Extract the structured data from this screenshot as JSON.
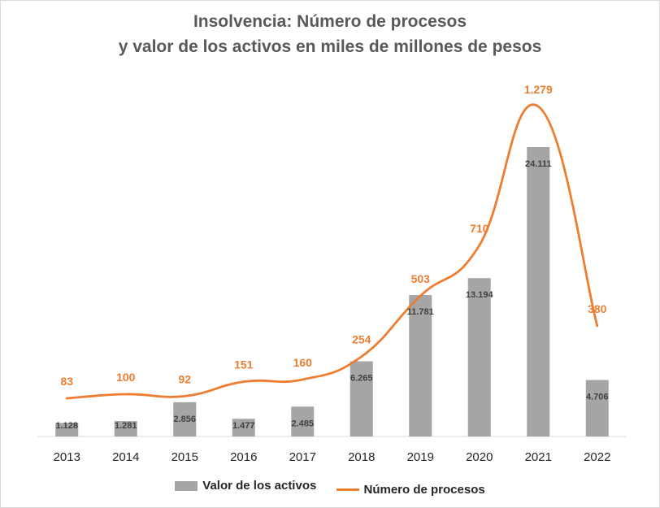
{
  "chart_data": {
    "type": "bar+line",
    "title_lines": [
      "Insolvencia: Número de procesos",
      "y valor de los activos en miles de millones de pesos"
    ],
    "categories": [
      "2013",
      "2014",
      "2015",
      "2016",
      "2017",
      "2018",
      "2019",
      "2020",
      "2021",
      "2022"
    ],
    "series": [
      {
        "name": "Valor de los activos",
        "type": "bar",
        "color": "#a5a5a5",
        "values": [
          1128,
          1281,
          2856,
          1477,
          2485,
          6265,
          11781,
          13194,
          24111,
          4706
        ],
        "labels": [
          "1.128",
          "1.281",
          "2.856",
          "1.477",
          "2.485",
          "6.265",
          "11.781",
          "13.194",
          "24.111",
          "4.706"
        ]
      },
      {
        "name": "Número de procesos",
        "type": "line",
        "color": "#ed7d31",
        "values": [
          83,
          100,
          92,
          151,
          160,
          254,
          503,
          710,
          1279,
          380
        ],
        "labels": [
          "83",
          "100",
          "92",
          "151",
          "160",
          "254",
          "503",
          "710",
          "1.279",
          "380"
        ]
      }
    ],
    "legend_position": "bottom",
    "grid": false
  }
}
